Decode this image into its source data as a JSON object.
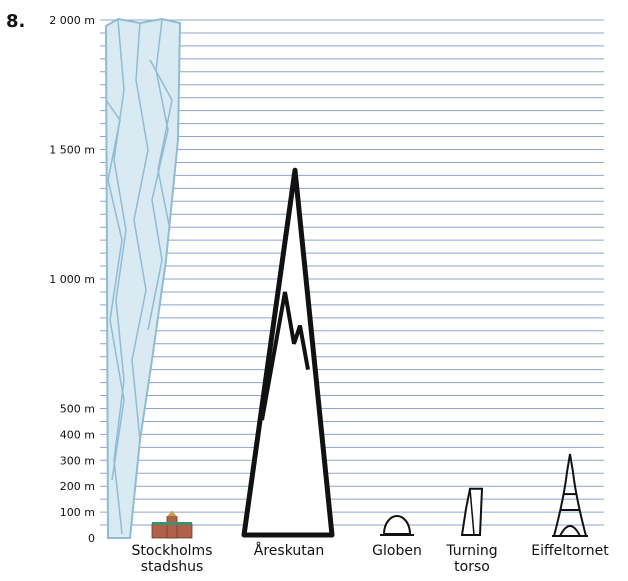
{
  "problem_number": "8.",
  "colors": {
    "gridline": "#8fa3cf",
    "ice_fill": "#d9eaf2",
    "ice_stroke": "#8fbcd4",
    "outline": "#111111",
    "city_hall_brick": "#b0614a",
    "city_hall_roof": "#3f8f6f"
  },
  "chart_data": {
    "type": "bar",
    "title": "",
    "xlabel": "",
    "ylabel": "",
    "ylim": [
      0,
      2000
    ],
    "grid": true,
    "y_ticks": [
      {
        "value": 0,
        "label": "0"
      },
      {
        "value": 100,
        "label": "100 m"
      },
      {
        "value": 200,
        "label": "200 m"
      },
      {
        "value": 300,
        "label": "300 m"
      },
      {
        "value": 400,
        "label": "400 m"
      },
      {
        "value": 500,
        "label": "500 m"
      },
      {
        "value": 1000,
        "label": "1 000 m"
      },
      {
        "value": 1500,
        "label": "1 500 m"
      },
      {
        "value": 2000,
        "label": "2 000 m"
      }
    ],
    "categories": [
      {
        "name": "Stockholms stadshus",
        "label_lines": [
          "Stockholms",
          "stadshus"
        ],
        "value": 106,
        "icon": "city-hall-icon"
      },
      {
        "name": "Åreskutan",
        "label_lines": [
          "Åreskutan"
        ],
        "value": 1420,
        "icon": "mountain-icon"
      },
      {
        "name": "Globen",
        "label_lines": [
          "Globen"
        ],
        "value": 85,
        "icon": "dome-icon"
      },
      {
        "name": "Turning torso",
        "label_lines": [
          "Turning",
          "torso"
        ],
        "value": 190,
        "icon": "twisted-tower-icon"
      },
      {
        "name": "Eiffeltornet",
        "label_lines": [
          "Eiffeltornet"
        ],
        "value": 324,
        "icon": "eiffel-tower-icon"
      }
    ],
    "background_element": {
      "icon": "ice-column-icon",
      "value": 2000
    }
  }
}
